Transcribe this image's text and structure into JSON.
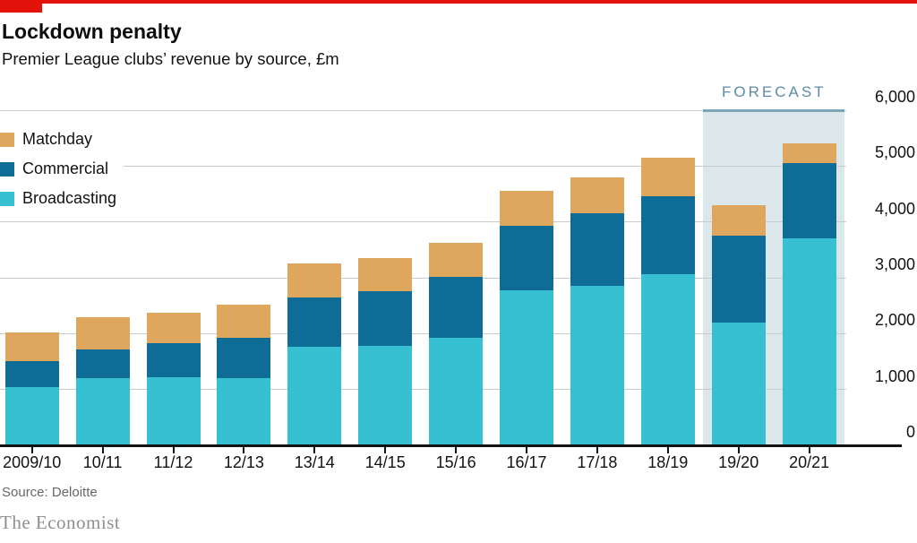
{
  "header": {
    "title": "Lockdown penalty",
    "subtitle": "Premier League clubs’ revenue by source, £m"
  },
  "forecast": {
    "label": "FORECAST",
    "bg_color": "#DCE7EC",
    "border_color": "#7EA7BC",
    "text_color": "#5D8CA6",
    "categories_covered": [
      "19/20",
      "20/21"
    ]
  },
  "colors": {
    "accent_red": "#E3120B",
    "gridline": "#C9CBCD",
    "axis": "#101414",
    "matchday": "#DFA65E",
    "commercial": "#0E6C96",
    "broadcasting": "#36C0D2"
  },
  "chart_data": {
    "type": "bar",
    "stacked": true,
    "title": "Lockdown penalty",
    "subtitle": "Premier League clubs’ revenue by source, £m",
    "categories": [
      "2009/10",
      "10/11",
      "11/12",
      "12/13",
      "13/14",
      "14/15",
      "15/16",
      "16/17",
      "17/18",
      "18/19",
      "19/20",
      "20/21"
    ],
    "series": [
      {
        "name": "Broadcasting",
        "color": "#36C0D2",
        "values": [
          1040,
          1200,
          1220,
          1210,
          1760,
          1780,
          1930,
          2770,
          2860,
          3070,
          2200,
          3700
        ]
      },
      {
        "name": "Commercial",
        "color": "#0E6C96",
        "values": [
          470,
          520,
          610,
          720,
          890,
          980,
          1090,
          1160,
          1290,
          1390,
          1550,
          1350
        ]
      },
      {
        "name": "Matchday",
        "color": "#DFA65E",
        "values": [
          510,
          570,
          550,
          590,
          610,
          590,
          610,
          620,
          650,
          690,
          550,
          350
        ]
      }
    ],
    "totals": [
      2020,
      2290,
      2380,
      2520,
      3260,
      3350,
      3630,
      4550,
      4800,
      5150,
      4300,
      5400
    ],
    "xlabel": "",
    "ylabel": "£m",
    "ylim": [
      0,
      6000
    ],
    "yticks": [
      0,
      1000,
      2000,
      3000,
      4000,
      5000,
      6000
    ],
    "ytick_labels": [
      "0",
      "1,000",
      "2,000",
      "3,000",
      "4,000",
      "5,000",
      "6,000"
    ],
    "grid": "horizontal",
    "axis_side": "right",
    "legend_position": "top-left",
    "legend_order": [
      "Matchday",
      "Commercial",
      "Broadcasting"
    ],
    "forecast_span": [
      10,
      11
    ]
  },
  "footer": {
    "source": "Source: Deloitte",
    "brand": "The Economist"
  }
}
